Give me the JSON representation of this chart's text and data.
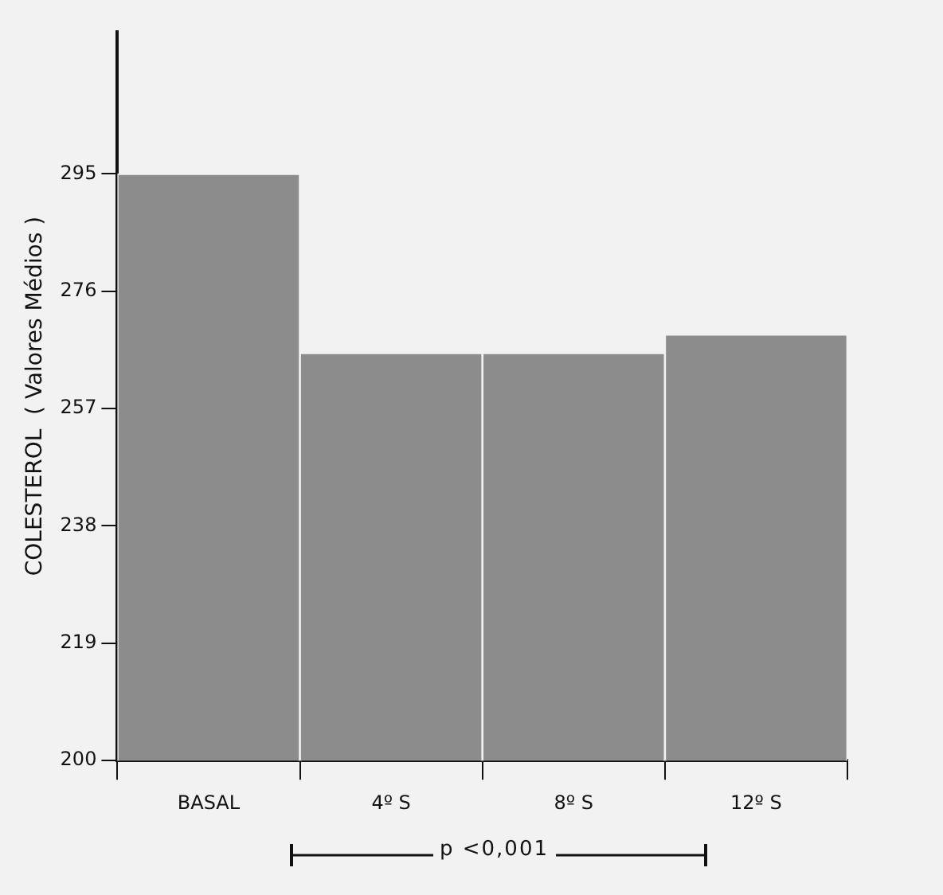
{
  "chart_data": {
    "type": "bar",
    "ylabel": "COLESTEROL  ( Valores Médios )",
    "categories": [
      "BASAL",
      "4º S",
      "8º S",
      "12º S"
    ],
    "values": [
      295,
      266,
      266,
      269
    ],
    "color": "#8c8c8c",
    "ylim": [
      200,
      318
    ],
    "yticks": [
      200,
      219,
      238,
      257,
      276,
      295
    ],
    "grid": false,
    "legend": false,
    "annotations": [
      "p <0,001"
    ]
  }
}
